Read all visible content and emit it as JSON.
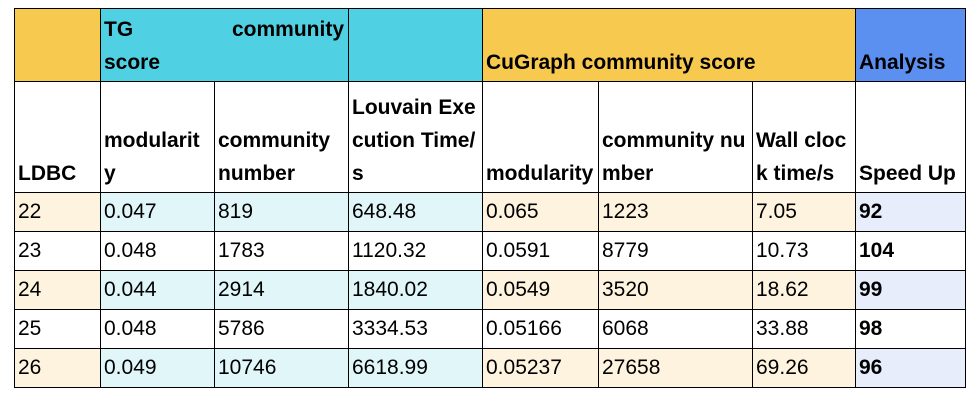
{
  "table": {
    "group_headers": {
      "tg": "TG community score",
      "cugraph": "CuGraph community score",
      "analysis": "Analysis"
    },
    "columns": [
      "LDBC",
      "modularity",
      "community number",
      "Louvain Execution Time/s",
      "modularity",
      "community number",
      "Wall clock time/s",
      "Speed Up"
    ],
    "rows": [
      [
        "22",
        "0.047",
        "819",
        "648.48",
        "0.065",
        "1223",
        "7.05",
        "92"
      ],
      [
        "23",
        "0.048",
        "1783",
        "1120.32",
        "0.0591",
        "8779",
        "10.73",
        "104"
      ],
      [
        "24",
        "0.044",
        "2914",
        "1840.02",
        "0.0549",
        "3520",
        "18.62",
        "99"
      ],
      [
        "25",
        "0.048",
        "5786",
        "3334.53",
        "0.05166",
        "6068",
        "33.88",
        "98"
      ],
      [
        "26",
        "0.049",
        "10746",
        "6618.99",
        "0.05237",
        "27658",
        "69.26",
        "96"
      ]
    ]
  }
}
